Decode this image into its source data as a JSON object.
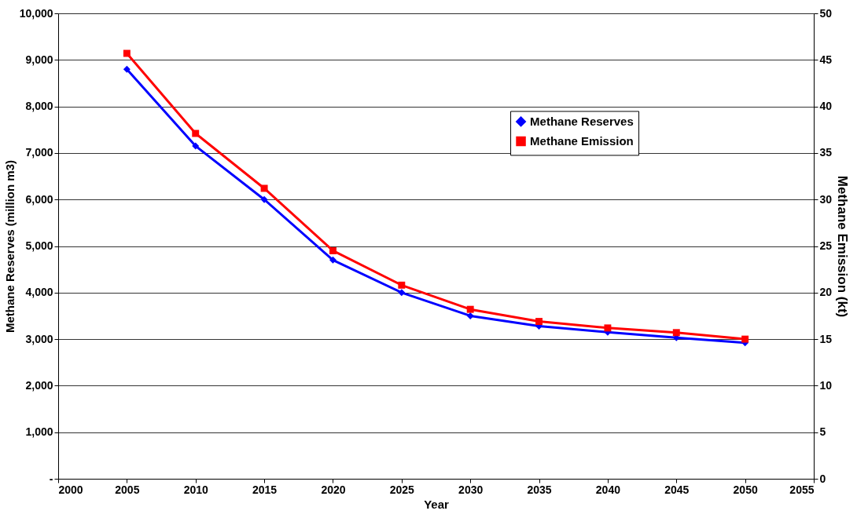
{
  "chart_data": {
    "type": "line",
    "xlabel": "Year",
    "ylabel": "Methane Reserves (million m3)",
    "y2label": "Methane Emission (kt)",
    "x": [
      2005,
      2010,
      2015,
      2020,
      2025,
      2030,
      2035,
      2040,
      2045,
      2050
    ],
    "series": [
      {
        "name": "Methane Reserves",
        "color": "#0000ff",
        "marker": "diamond",
        "values": [
          8800,
          7150,
          6000,
          4700,
          4000,
          3500,
          3280,
          3150,
          3030,
          2920
        ]
      },
      {
        "name": "Methane Emission",
        "color": "#ff0000",
        "marker": "square",
        "axis": "y2",
        "values": [
          45.7,
          37.1,
          31.2,
          24.5,
          20.8,
          18.2,
          16.9,
          16.2,
          15.7,
          15.0
        ]
      }
    ],
    "xlim": [
      2000,
      2055
    ],
    "xticks": [
      2000,
      2005,
      2010,
      2015,
      2020,
      2025,
      2030,
      2035,
      2040,
      2045,
      2050,
      2055
    ],
    "ylim": [
      0,
      10000
    ],
    "yticks": [
      {
        "value": 0,
        "label": "-"
      },
      {
        "value": 1000,
        "label": "1,000"
      },
      {
        "value": 2000,
        "label": "2,000"
      },
      {
        "value": 3000,
        "label": "3,000"
      },
      {
        "value": 4000,
        "label": "4,000"
      },
      {
        "value": 5000,
        "label": "5,000"
      },
      {
        "value": 6000,
        "label": "6,000"
      },
      {
        "value": 7000,
        "label": "7,000"
      },
      {
        "value": 8000,
        "label": "8,000"
      },
      {
        "value": 9000,
        "label": "9,000"
      },
      {
        "value": 10000,
        "label": "10,000"
      }
    ],
    "y2lim": [
      0,
      50
    ],
    "y2ticks": [
      0,
      5,
      10,
      15,
      20,
      25,
      30,
      35,
      40,
      45,
      50
    ],
    "grid": "y",
    "legend": "top right",
    "line_style": "solid"
  }
}
